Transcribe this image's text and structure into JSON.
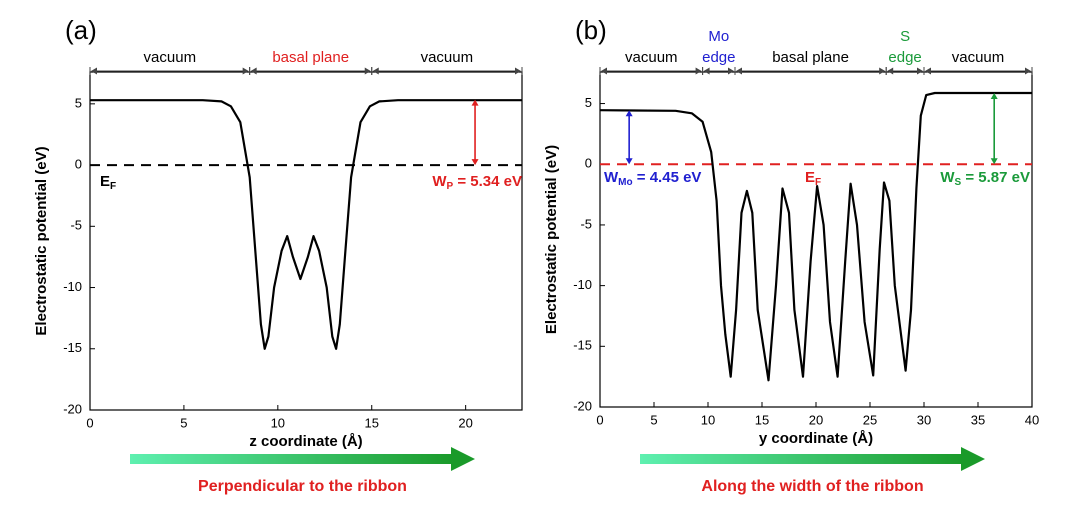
{
  "chart_data": [
    {
      "type": "line",
      "panel_label": "(a)",
      "x_label": "z coordinate (Å)",
      "y_label": "Electrostatic potential (eV)",
      "direction_label": "Perpendicular to the ribbon",
      "xlim": [
        0,
        23
      ],
      "ylim": [
        -20,
        7.6
      ],
      "xticks": [
        0,
        5,
        10,
        15,
        20
      ],
      "yticks": [
        -20,
        -15,
        -10,
        -5,
        0,
        5
      ],
      "x": [
        0,
        6,
        7,
        7.5,
        8,
        8.5,
        8.8,
        9.1,
        9.3,
        9.5,
        9.8,
        10.2,
        10.5,
        10.8,
        11.2,
        11.6,
        11.9,
        12.2,
        12.6,
        12.9,
        13.1,
        13.3,
        13.6,
        13.9,
        14.4,
        14.9,
        15.4,
        16.4,
        23
      ],
      "series": [
        {
          "color": "#000000",
          "values": [
            5.3,
            5.3,
            5.2,
            4.8,
            3.5,
            -1,
            -7,
            -13,
            -15,
            -14,
            -10,
            -7,
            -5.8,
            -7.5,
            -9.3,
            -7.5,
            -5.8,
            -7,
            -10,
            -14,
            -15,
            -13,
            -7,
            -1,
            3.5,
            4.8,
            5.2,
            5.3,
            5.3
          ]
        }
      ],
      "fermi_level": {
        "value": 0,
        "color": "#000000",
        "label": {
          "main": "E",
          "sub": "F"
        }
      },
      "regions": [
        {
          "lines": [
            "vacuum"
          ],
          "range": [
            0,
            8.5
          ],
          "color": "#000000"
        },
        {
          "lines": [
            "basal plane"
          ],
          "range": [
            8.5,
            15
          ],
          "color": "#e02020"
        },
        {
          "lines": [
            "vacuum"
          ],
          "range": [
            15,
            23
          ],
          "color": "#000000"
        }
      ],
      "work_functions": [
        {
          "x": 20.5,
          "range": [
            0,
            5.34
          ],
          "color": "#e02020",
          "label": {
            "main": "W",
            "sub": "P",
            "rest": " = 5.34 eV"
          }
        }
      ]
    },
    {
      "type": "line",
      "panel_label": "(b)",
      "x_label": "y coordinate (Å)",
      "y_label": "Electrostatic potential (eV)",
      "direction_label": "Along the width of the ribbon",
      "xlim": [
        0,
        40
      ],
      "ylim": [
        -20,
        7.6
      ],
      "xticks": [
        0,
        5,
        10,
        15,
        20,
        25,
        30,
        35,
        40
      ],
      "yticks": [
        -20,
        -15,
        -10,
        -5,
        0,
        5
      ],
      "x": [
        0,
        7,
        8.5,
        9.5,
        10.3,
        10.8,
        11.2,
        11.6,
        12.1,
        12.6,
        13.1,
        13.6,
        14.1,
        14.6,
        15.6,
        16.3,
        16.9,
        17.5,
        18,
        18.8,
        19.5,
        20.1,
        20.7,
        21.3,
        22,
        22.7,
        23.2,
        23.8,
        24.5,
        25.3,
        25.9,
        26.3,
        26.8,
        27.3,
        28.3,
        28.8,
        29.3,
        29.7,
        30.2,
        31,
        40
      ],
      "series": [
        {
          "color": "#000000",
          "values": [
            4.45,
            4.4,
            4.2,
            3.5,
            1,
            -3,
            -10,
            -14,
            -17.5,
            -12,
            -4,
            -2.2,
            -4,
            -12,
            -17.8,
            -10,
            -2,
            -4,
            -12,
            -17.5,
            -8,
            -1.8,
            -5,
            -13,
            -17.5,
            -8,
            -1.6,
            -5,
            -13,
            -17.4,
            -7,
            -1.5,
            -3,
            -10,
            -17,
            -12,
            -2,
            4,
            5.7,
            5.87,
            5.87
          ]
        }
      ],
      "fermi_level": {
        "value": 0,
        "color": "#e02020",
        "label": {
          "main": "E",
          "sub": "F"
        }
      },
      "regions": [
        {
          "lines": [
            "vacuum"
          ],
          "range": [
            0,
            9.5
          ],
          "color": "#000000"
        },
        {
          "lines": [
            "Mo",
            "edge"
          ],
          "range": [
            9.5,
            12.5
          ],
          "color": "#2020d0"
        },
        {
          "lines": [
            "basal plane"
          ],
          "range": [
            12.5,
            26.5
          ],
          "color": "#000000"
        },
        {
          "lines": [
            "S",
            "edge"
          ],
          "range": [
            26.5,
            30
          ],
          "color": "#1a9a3a"
        },
        {
          "lines": [
            "vacuum"
          ],
          "range": [
            30,
            40
          ],
          "color": "#000000"
        }
      ],
      "work_functions": [
        {
          "x": 2.7,
          "range": [
            0,
            4.45
          ],
          "color": "#2020d0",
          "label": {
            "main": "W",
            "sub": "Mo",
            "rest": " = 4.45 eV"
          }
        },
        {
          "x": 36.5,
          "range": [
            0,
            5.87
          ],
          "color": "#1a9a3a",
          "label": {
            "main": "W",
            "sub": "S",
            "rest": " = 5.87 eV"
          }
        }
      ]
    }
  ]
}
